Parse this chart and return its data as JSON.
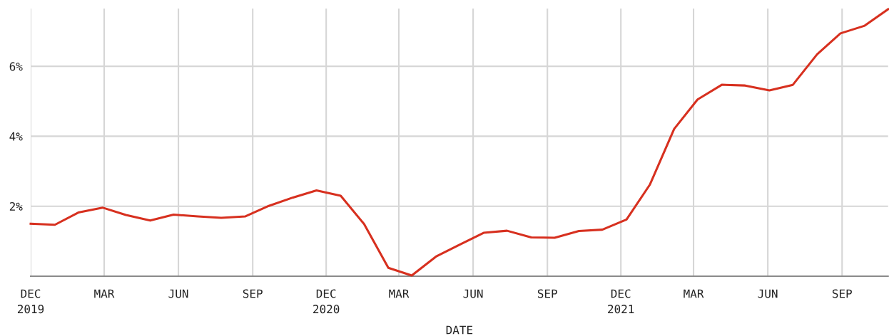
{
  "chart_data": {
    "type": "line",
    "xlabel": "DATE",
    "x": [
      "2019-12-01",
      "2019-12-31",
      "2020-01-29",
      "2020-02-28",
      "2020-03-28",
      "2020-04-27",
      "2020-05-26",
      "2020-06-25",
      "2020-07-24",
      "2020-08-23",
      "2020-09-21",
      "2020-10-21",
      "2020-11-19",
      "2020-12-19",
      "2021-01-17",
      "2021-02-16",
      "2021-03-17",
      "2021-04-16",
      "2021-05-15",
      "2021-06-14",
      "2021-07-13",
      "2021-08-12",
      "2021-09-10",
      "2021-10-10",
      "2021-11-08",
      "2021-12-08",
      "2022-01-06",
      "2022-02-05",
      "2022-03-06",
      "2022-04-05",
      "2022-05-04",
      "2022-06-03",
      "2022-07-02",
      "2022-08-01",
      "2022-08-30",
      "2022-09-29",
      "2022-10-28"
    ],
    "series": [
      {
        "color": "#d7301f",
        "values": [
          1.5,
          1.47,
          1.82,
          1.96,
          1.75,
          1.59,
          1.76,
          1.71,
          1.67,
          1.71,
          2.01,
          2.25,
          2.45,
          2.3,
          1.49,
          0.24,
          0.02,
          0.56,
          0.9,
          1.24,
          1.3,
          1.11,
          1.1,
          1.29,
          1.33,
          1.62,
          2.62,
          4.21,
          5.05,
          5.47,
          5.45,
          5.31,
          5.47,
          6.34,
          6.94,
          7.16,
          7.63
        ]
      }
    ],
    "xlim": [
      "2019-12-01",
      "2022-10-28"
    ],
    "ylim": [
      0,
      7.65
    ],
    "xticks": [
      {
        "value": "2019-12",
        "label": "DEC\n2019"
      },
      {
        "value": "2020-03",
        "label": "MAR"
      },
      {
        "value": "2020-06",
        "label": "JUN"
      },
      {
        "value": "2020-09",
        "label": "SEP"
      },
      {
        "value": "2020-12",
        "label": "DEC\n2020"
      },
      {
        "value": "2021-03",
        "label": "MAR"
      },
      {
        "value": "2021-06",
        "label": "JUN"
      },
      {
        "value": "2021-09",
        "label": "SEP"
      },
      {
        "value": "2021-12",
        "label": "DEC\n2021"
      },
      {
        "value": "2022-03",
        "label": "MAR"
      },
      {
        "value": "2022-06",
        "label": "JUN"
      },
      {
        "value": "2022-09",
        "label": "SEP"
      }
    ],
    "yticks": [
      {
        "value": 2,
        "label": "2%"
      },
      {
        "value": 4,
        "label": "4%"
      },
      {
        "value": 6,
        "label": "6%"
      }
    ],
    "grid": true,
    "marker": "none",
    "line_style": "solid"
  }
}
